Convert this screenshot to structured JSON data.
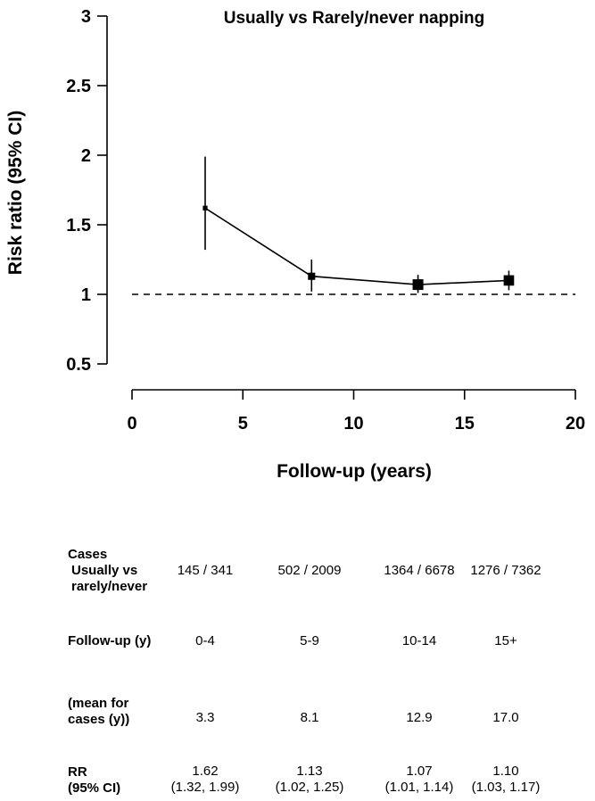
{
  "chart_data": {
    "type": "line",
    "title": "Usually vs Rarely/never napping",
    "xlabel": "Follow-up (years)",
    "ylabel": "Risk ratio (95% CI)",
    "xlim": [
      0,
      20
    ],
    "ylim": [
      0.5,
      3
    ],
    "x_ticks": [
      "0",
      "5",
      "10",
      "15",
      "20"
    ],
    "y_ticks": [
      "0.5",
      "1",
      "1.5",
      "2",
      "2.5",
      "3"
    ],
    "reference_line": 1,
    "grid": false,
    "points": [
      {
        "x": 3.3,
        "y": 1.62,
        "lower": 1.32,
        "upper": 1.99,
        "weight": 145
      },
      {
        "x": 8.1,
        "y": 1.13,
        "lower": 1.02,
        "upper": 1.25,
        "weight": 502
      },
      {
        "x": 12.9,
        "y": 1.07,
        "lower": 1.01,
        "upper": 1.14,
        "weight": 1364
      },
      {
        "x": 17.0,
        "y": 1.1,
        "lower": 1.03,
        "upper": 1.17,
        "weight": 1276
      }
    ]
  },
  "table": {
    "cases_label_1": "Cases",
    "cases_label_2": "Usually vs",
    "cases_label_3": "rarely/never",
    "followup_label": "Follow-up (y)",
    "mean_label_1": "(mean for",
    "mean_label_2": "cases (y))",
    "rr_label_1": "RR",
    "rr_label_2": "(95% CI)",
    "columns": [
      {
        "cases": "145 / 341",
        "followup": "0-4",
        "mean": "3.3",
        "rr": "1.62",
        "ci": "(1.32, 1.99)"
      },
      {
        "cases": "502 / 2009",
        "followup": "5-9",
        "mean": "8.1",
        "rr": "1.13",
        "ci": "(1.02, 1.25)"
      },
      {
        "cases": "1364 / 6678",
        "followup": "10-14",
        "mean": "12.9",
        "rr": "1.07",
        "ci": "(1.01, 1.14)"
      },
      {
        "cases": "1276 / 7362",
        "followup": "15+",
        "mean": "17.0",
        "rr": "1.10",
        "ci": "(1.03, 1.17)"
      }
    ]
  }
}
